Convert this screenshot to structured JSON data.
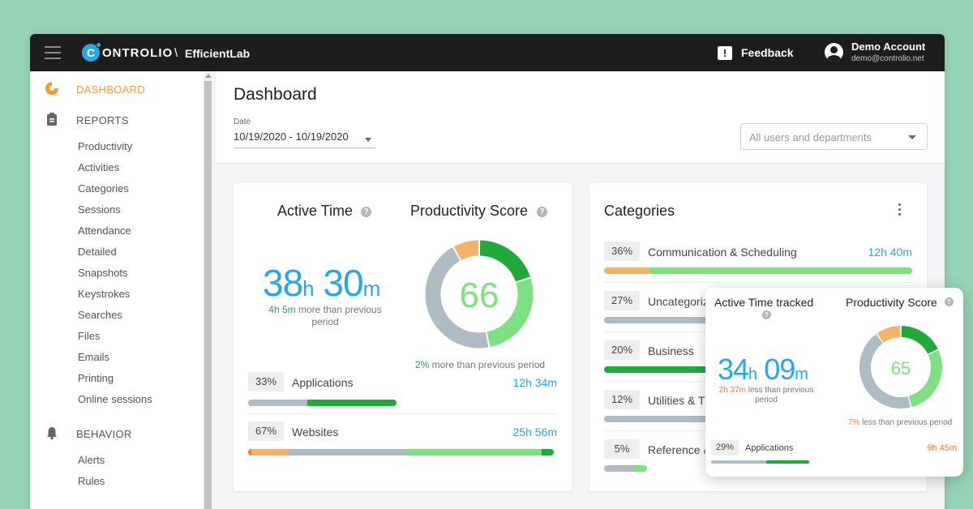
{
  "app": {
    "brand_letter": "C",
    "brand_name": "ONTROLIO",
    "separator": "\\",
    "org": "EfficientLab",
    "feedback": "Feedback",
    "account_name": "Demo Account",
    "account_email": "demo@controlio.net"
  },
  "sidebar": {
    "dashboard": "DASHBOARD",
    "reports": "REPORTS",
    "report_items": [
      "Productivity",
      "Activities",
      "Categories",
      "Sessions",
      "Attendance",
      "Detailed",
      "Snapshots",
      "Keystrokes",
      "Searches",
      "Files",
      "Emails",
      "Printing",
      "Online sessions"
    ],
    "behavior": "BEHAVIOR",
    "behavior_items": [
      "Alerts",
      "Rules"
    ]
  },
  "header": {
    "title": "Dashboard",
    "date_caption": "Date",
    "date_value": "10/19/2020 - 10/19/2020",
    "users_placeholder": "All users and departments"
  },
  "card_main": {
    "active_title": "Active Time",
    "active_hours": "38",
    "active_minutes": "30",
    "hour_unit": "h",
    "minute_unit": "m",
    "active_delta_value": "4h 5m",
    "active_delta_text": "more than previous",
    "active_delta_text2": "period",
    "prod_title": "Productivity Score",
    "prod_score": "66",
    "prod_delta_value": "2%",
    "prod_delta_text": "more than previous period",
    "rows": [
      {
        "pct": "33%",
        "label": "Applications",
        "time": "12h 34m"
      },
      {
        "pct": "67%",
        "label": "Websites",
        "time": "25h 56m"
      }
    ]
  },
  "card_categories": {
    "title": "Categories",
    "rows": [
      {
        "pct": "36%",
        "label": "Communication & Scheduling",
        "time": "12h 40m"
      },
      {
        "pct": "27%",
        "label": "Uncategoriz"
      },
      {
        "pct": "20%",
        "label": "Business"
      },
      {
        "pct": "12%",
        "label": "Utilities & T"
      },
      {
        "pct": "5%",
        "label": "Reference &"
      }
    ]
  },
  "popup": {
    "active_title": "Active Time tracked",
    "active_hours": "34",
    "active_minutes": "09",
    "hour_unit": "h",
    "minute_unit": "m",
    "active_delta_value": "2h 37m",
    "active_delta_text": "less than previous",
    "active_delta_text2": "period",
    "prod_title": "Productivity Score",
    "prod_score": "65",
    "prod_delta_value": "7%",
    "prod_delta_text": "less than previous period",
    "row": {
      "pct": "29%",
      "label": "Applications",
      "time": "9h 45m"
    }
  },
  "colors": {
    "accent_blue": "#2aa6e8",
    "orange": "#f59d2a",
    "dark_green": "#22a93c",
    "light_green": "#7ee083",
    "neutral_gray": "#b0bcc3",
    "peach": "#f5b26b",
    "score_text": "#7ee083",
    "popup_score_text": "#7ee083"
  },
  "donut_main": [
    {
      "name": "productive",
      "color": "#22a93c",
      "value": 20
    },
    {
      "name": "light",
      "color": "#7ee083",
      "value": 27
    },
    {
      "name": "neutral",
      "color": "#b0bcc3",
      "value": 45
    },
    {
      "name": "unproductive",
      "color": "#f5b26b",
      "value": 8
    }
  ],
  "donut_popup": [
    {
      "name": "productive",
      "color": "#22a93c",
      "value": 18
    },
    {
      "name": "light",
      "color": "#7ee083",
      "value": 28
    },
    {
      "name": "neutral",
      "color": "#b0bcc3",
      "value": 44
    },
    {
      "name": "unproductive",
      "color": "#f5b26b",
      "value": 10
    }
  ]
}
